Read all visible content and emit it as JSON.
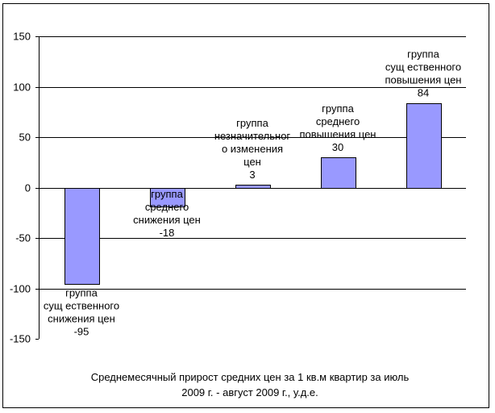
{
  "chart_data": {
    "type": "bar",
    "categories": [
      "группа существенного снижения цен",
      "группа среднего снижения цен",
      "группа незначительного изменения цен",
      "группа среднего повышения цен",
      "группа существенного повышения цен"
    ],
    "category_label_lines": [
      [
        "группа",
        "сущ ественного",
        "снижения цен"
      ],
      [
        "группа",
        "среднего",
        "снижения цен"
      ],
      [
        "группа",
        "незначительног",
        "о изменения",
        "цен"
      ],
      [
        "группа",
        "среднего",
        "повышения цен"
      ],
      [
        "группа",
        "сущ ественного",
        "повышения цен"
      ]
    ],
    "values": [
      -95,
      -18,
      3,
      30,
      84
    ],
    "value_labels": [
      "-95",
      "-18",
      "3",
      "30",
      "84"
    ],
    "ylim": [
      -150,
      150
    ],
    "yticks": [
      "-150",
      "-100",
      "-50",
      "0",
      "50",
      "100",
      "150"
    ],
    "ytick_values": [
      -150,
      -100,
      -50,
      0,
      50,
      100,
      150
    ],
    "grid": true,
    "bar_color": "#9999ff",
    "bar_border_color": "#000000",
    "caption_lines": [
      "Среднемесячный прирост средних цен за 1 кв.м квартир за июль",
      "2009 г. - август 2009 г., у.д.е."
    ]
  }
}
